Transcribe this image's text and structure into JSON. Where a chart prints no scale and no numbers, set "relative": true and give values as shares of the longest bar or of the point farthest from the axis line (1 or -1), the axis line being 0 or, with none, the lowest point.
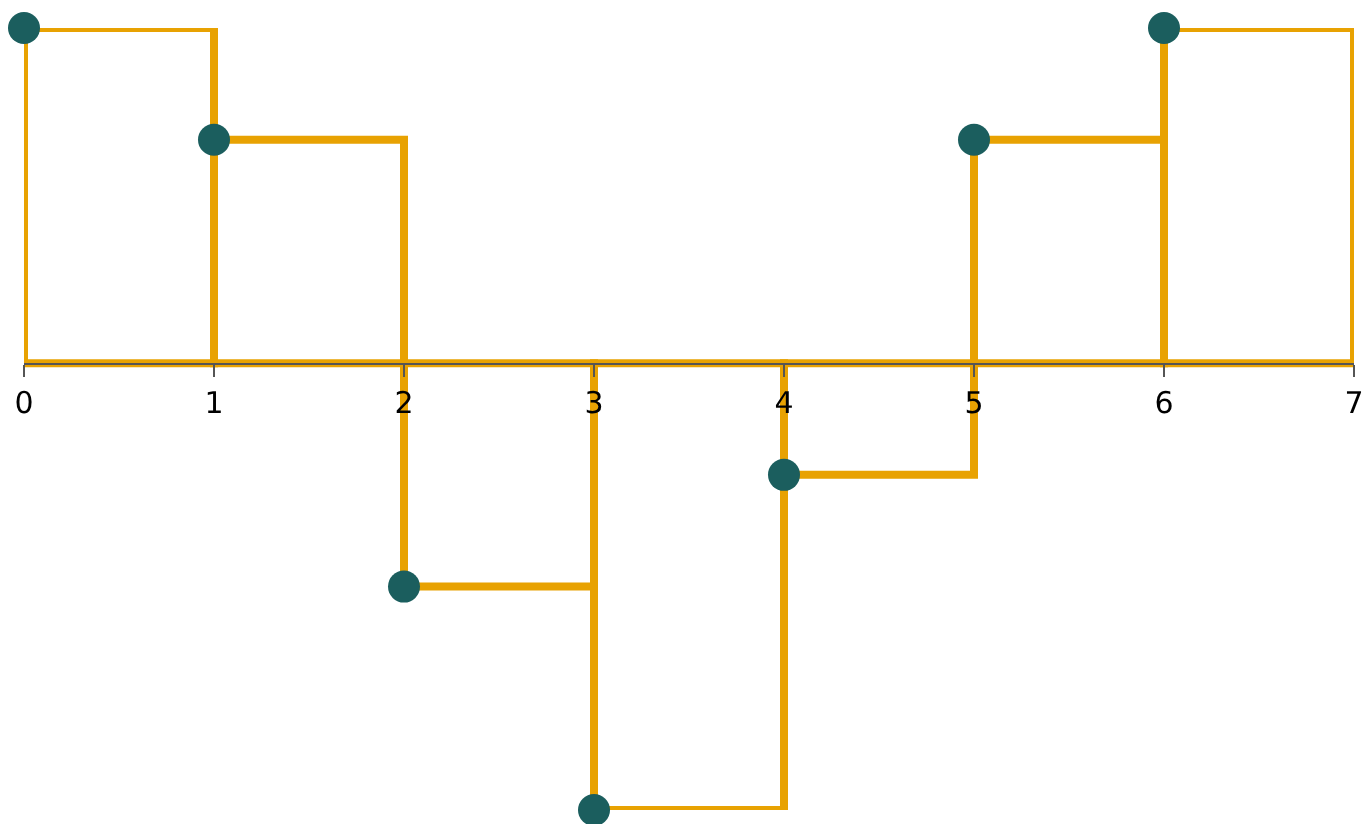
{
  "chart_data": {
    "type": "bar",
    "relative": true,
    "x": [
      0,
      1,
      2,
      3,
      4,
      5,
      6
    ],
    "xlim": [
      0,
      7
    ],
    "xticks": [
      0,
      1,
      2,
      3,
      4,
      5,
      6,
      7
    ],
    "series": [
      {
        "color": "#e8a202",
        "x": [
          0.5,
          1.5,
          2.5,
          3.5,
          4.5,
          5.5,
          6.5
        ],
        "values": [
          0.75,
          0.5,
          -0.5,
          -1,
          -0.25,
          0.5,
          0.75
        ]
      },
      {
        "type": "scatter",
        "color": "#1b5e5e",
        "values": [
          0.75,
          0.5,
          -0.5,
          -1,
          -0.25,
          0.5,
          0.75
        ]
      }
    ],
    "marker": "circle"
  }
}
